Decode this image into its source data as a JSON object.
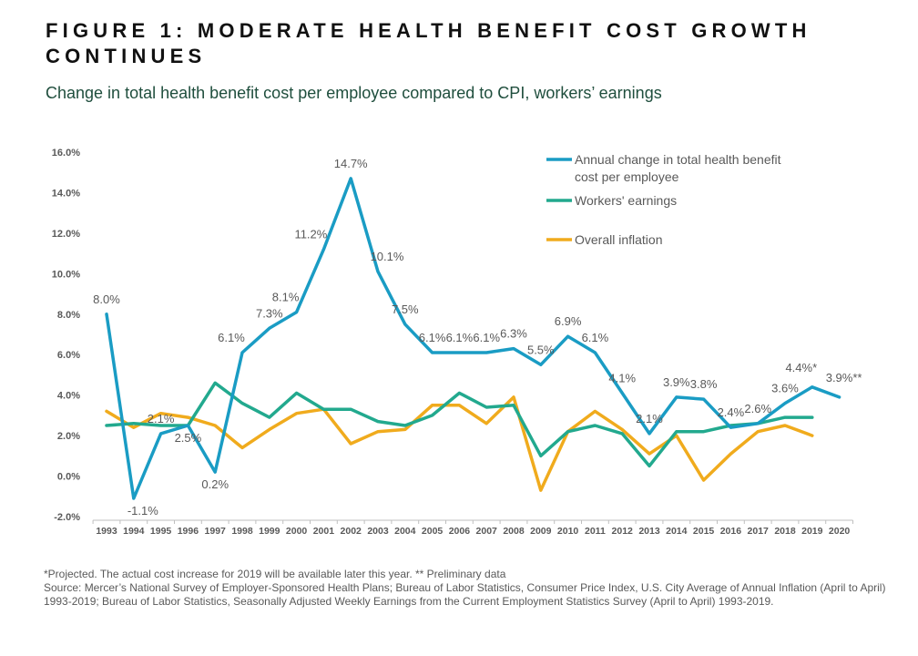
{
  "title": "FIGURE 1: MODERATE HEALTH BENEFIT COST GROWTH CONTINUES",
  "subtitle": "Change in total health benefit cost per employee compared to CPI, workers’ earnings",
  "footnotes": [
    "*Projected. The actual cost increase for 2019 will be available later this year. ** Preliminary data",
    "Source: Mercer’s National Survey of Employer-Sponsored Health Plans; Bureau of Labor Statistics, Consumer Price Index, U.S. City Average of Annual Inflation (April to April) 1993-2019; Bureau of Labor Statistics, Seasonally Adjusted Weekly Earnings from the Current Employment Statistics Survey (April to April) 1993-2019."
  ],
  "colors": {
    "health": "#1a9cc4",
    "earnings": "#22a98e",
    "inflation": "#f0ab1d",
    "text": "#595959"
  },
  "chart_data": {
    "type": "line",
    "x": [
      "1993",
      "1994",
      "1995",
      "1996",
      "1997",
      "1998",
      "1999",
      "2000",
      "2001",
      "2002",
      "2003",
      "2004",
      "2005",
      "2006",
      "2007",
      "2008",
      "2009",
      "2010",
      "2011",
      "2012",
      "2013",
      "2014",
      "2015",
      "2016",
      "2017",
      "2018",
      "2019",
      "2020"
    ],
    "ylim": [
      -2.0,
      16.0
    ],
    "yticks": [
      "-2.0%",
      "0.0%",
      "2.0%",
      "4.0%",
      "6.0%",
      "8.0%",
      "10.0%",
      "12.0%",
      "14.0%",
      "16.0%"
    ],
    "grid": false,
    "legend_position": "top-right",
    "series": [
      {
        "name": "Annual change in total health benefit cost per employee",
        "color": "#1a9cc4",
        "values": [
          8.0,
          -1.1,
          2.1,
          2.5,
          0.2,
          6.1,
          7.3,
          8.1,
          11.2,
          14.7,
          10.1,
          7.5,
          6.1,
          6.1,
          6.1,
          6.3,
          5.5,
          6.9,
          6.1,
          4.1,
          2.1,
          3.9,
          3.8,
          2.4,
          2.6,
          3.6,
          4.4,
          3.9
        ],
        "labels": [
          "8.0%",
          "-1.1%",
          "2.1%",
          "2.5%",
          "0.2%",
          "6.1%",
          "7.3%",
          "8.1%",
          "11.2%",
          "14.7%",
          "10.1%",
          "7.5%",
          "6.1%",
          "6.1%",
          "6.1%",
          "6.3%",
          "5.5%",
          "6.9%",
          "6.1%",
          "4.1%",
          "2.1%",
          "3.9%",
          "3.8%",
          "2.4%",
          "2.6%",
          "3.6%",
          "4.4%*",
          "3.9%**"
        ]
      },
      {
        "name": "Workers' earnings",
        "color": "#22a98e",
        "values": [
          2.5,
          2.6,
          2.5,
          2.5,
          4.6,
          3.6,
          2.9,
          4.1,
          3.3,
          3.3,
          2.7,
          2.5,
          3.0,
          4.1,
          3.4,
          3.5,
          1.0,
          2.2,
          2.5,
          2.1,
          0.5,
          2.2,
          2.2,
          2.5,
          2.6,
          2.9,
          2.9,
          null
        ]
      },
      {
        "name": "Overall inflation",
        "color": "#f0ab1d",
        "values": [
          3.2,
          2.4,
          3.1,
          2.9,
          2.5,
          1.4,
          2.3,
          3.1,
          3.3,
          1.6,
          2.2,
          2.3,
          3.5,
          3.5,
          2.6,
          3.9,
          -0.7,
          2.2,
          3.2,
          2.3,
          1.1,
          2.0,
          -0.2,
          1.1,
          2.2,
          2.5,
          2.0,
          null
        ]
      }
    ]
  }
}
